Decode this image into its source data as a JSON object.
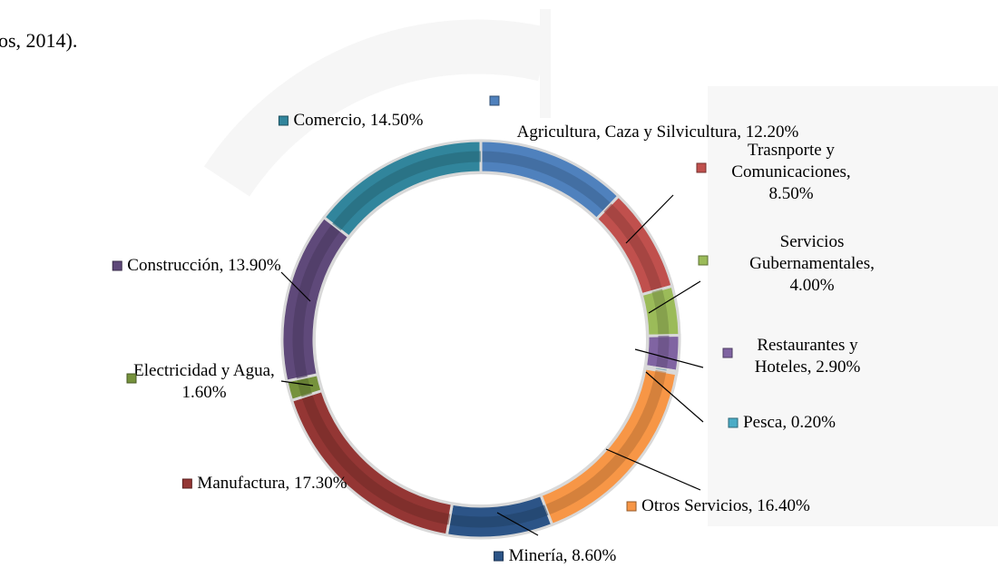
{
  "document_text": "os, 2014).",
  "chart_data": {
    "type": "doughnut",
    "values": [
      12.2,
      8.5,
      4.0,
      2.9,
      0.2,
      16.4,
      8.6,
      17.3,
      1.6,
      13.9,
      14.5
    ],
    "value_labels": [
      "Agricultura, Caza y Silvicultura, 12.20%",
      "Trasnporte y Comunicaciones, 8.50%",
      "Servicios Gubernamentales, 4.00%",
      "Restaurantes y Hoteles, 2.90%",
      "Pesca, 0.20%",
      "Otros Servicios, 16.40%",
      "Minería, 8.60%",
      "Manufactura, 17.30%",
      "Electricidad y Agua, 1.60%",
      "Construcción, 13.90%",
      "Comercio, 14.50%"
    ],
    "colors": [
      "#4f81bd",
      "#c0504d",
      "#9bbb59",
      "#8064a2",
      "#4bacc6",
      "#f79646",
      "#2c5487",
      "#943634",
      "#76923c",
      "#5f497a",
      "#31859c"
    ]
  }
}
